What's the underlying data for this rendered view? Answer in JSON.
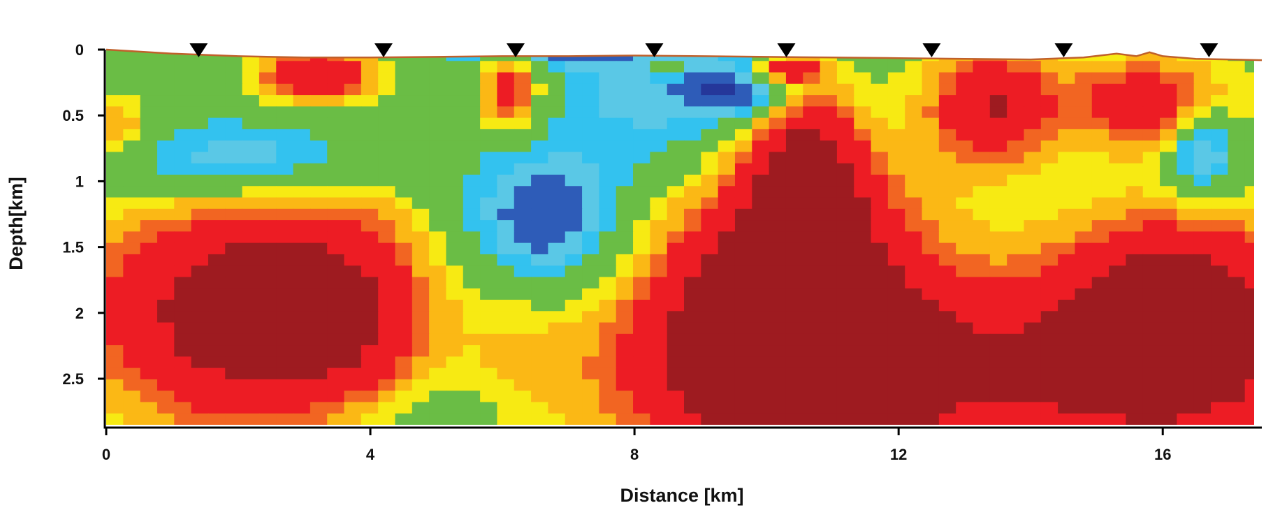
{
  "chart_data": {
    "type": "heatmap",
    "title": "",
    "xlabel": "Distance [km]",
    "ylabel": "Depth[km]",
    "xlim": [
      0,
      17.5
    ],
    "ylim": [
      0,
      2.85
    ],
    "y_inverted": true,
    "x_ticks": [
      0,
      4,
      8,
      12,
      16
    ],
    "x_tick_labels": [
      "0",
      "4",
      "8",
      "12",
      "16"
    ],
    "y_ticks": [
      0,
      0.5,
      1,
      1.5,
      2,
      2.5
    ],
    "y_tick_labels": [
      "0",
      "0.5",
      "1",
      "1.5",
      "2",
      "2.5"
    ],
    "grid": false,
    "legend": "none",
    "stations_km": [
      1.4,
      4.2,
      6.2,
      8.3,
      10.3,
      12.5,
      14.5,
      16.7
    ],
    "topography": {
      "x": [
        0,
        1.0,
        2.0,
        3.0,
        4.0,
        5.0,
        6.0,
        7.0,
        8.0,
        9.0,
        10.0,
        11.0,
        12.0,
        13.0,
        14.0,
        14.8,
        15.3,
        15.6,
        15.8,
        16.0,
        16.5,
        17.0,
        17.5
      ],
      "depth": [
        0.0,
        0.03,
        0.05,
        0.06,
        0.06,
        0.055,
        0.05,
        0.05,
        0.045,
        0.05,
        0.055,
        0.06,
        0.065,
        0.07,
        0.075,
        0.06,
        0.03,
        0.05,
        0.02,
        0.05,
        0.07,
        0.075,
        0.08
      ],
      "color": "#c0602a"
    },
    "color_scale": [
      "#25379a",
      "#2e5cb8",
      "#5ac8e6",
      "#33c2ef",
      "#6abd45",
      "#f7ea13",
      "#fbb815",
      "#f26522",
      "#ed1c24",
      "#9e1b20"
    ],
    "anomalies": [
      {
        "x": 8.5,
        "y": 0.25,
        "s": 1.8,
        "v": -1.0,
        "rx": 2.0,
        "ry": 0.35
      },
      {
        "x": 8.6,
        "y": 0.65,
        "s": 1.0,
        "v": -1.05,
        "rx": 1.4,
        "ry": 0.55
      },
      {
        "x": 6.6,
        "y": 1.32,
        "s": 1.0,
        "v": -2.6,
        "rx": 1.25,
        "ry": 0.55
      },
      {
        "x": 2.1,
        "y": 0.85,
        "s": 1.0,
        "v": -2.1,
        "rx": 1.9,
        "ry": 0.32
      },
      {
        "x": 9.7,
        "y": 0.3,
        "s": 1.0,
        "v": -2.0,
        "rx": 0.75,
        "ry": 0.22
      },
      {
        "x": 16.6,
        "y": 0.75,
        "s": 1.0,
        "v": -2.6,
        "rx": 0.55,
        "ry": 0.38
      },
      {
        "x": 6.7,
        "y": 0.07,
        "s": 1.0,
        "v": -1.7,
        "rx": 1.6,
        "ry": 0.06
      },
      {
        "x": 2.6,
        "y": 2.0,
        "s": 1.0,
        "v": 6.0,
        "rx": 2.7,
        "ry": 0.85
      },
      {
        "x": 10.4,
        "y": 1.95,
        "s": 1.0,
        "v": 6.3,
        "rx": 2.0,
        "ry": 1.05
      },
      {
        "x": 10.6,
        "y": 1.0,
        "s": 1.0,
        "v": 4.2,
        "rx": 0.8,
        "ry": 0.7
      },
      {
        "x": 12.0,
        "y": 2.5,
        "s": 1.0,
        "v": 3.5,
        "rx": 4.5,
        "ry": 0.7
      },
      {
        "x": 16.2,
        "y": 2.1,
        "s": 1.0,
        "v": 6.0,
        "rx": 2.0,
        "ry": 0.8
      },
      {
        "x": 13.4,
        "y": 0.42,
        "s": 1.0,
        "v": 3.9,
        "rx": 0.95,
        "ry": 0.45
      },
      {
        "x": 15.8,
        "y": 0.4,
        "s": 1.0,
        "v": 3.4,
        "rx": 1.3,
        "ry": 0.35
      },
      {
        "x": 3.2,
        "y": 0.18,
        "s": 1.0,
        "v": 3.7,
        "rx": 0.9,
        "ry": 0.22
      },
      {
        "x": 6.1,
        "y": 0.3,
        "s": 1.0,
        "v": 3.2,
        "rx": 0.45,
        "ry": 0.3
      },
      {
        "x": 0.15,
        "y": 0.58,
        "s": 1.0,
        "v": 1.8,
        "rx": 0.45,
        "ry": 0.25
      },
      {
        "x": 10.3,
        "y": 0.15,
        "s": 1.0,
        "v": 3.3,
        "rx": 0.55,
        "ry": 0.1
      },
      {
        "x": 5.0,
        "y": 2.2,
        "s": 1.0,
        "v": -1.3,
        "rx": 0.9,
        "ry": 0.9
      },
      {
        "x": 4.2,
        "y": 2.8,
        "s": 1.0,
        "v": -0.8,
        "rx": 1.5,
        "ry": 0.25
      },
      {
        "x": 8.5,
        "y": 0.15,
        "s": 1.0,
        "v": 1.4,
        "rx": 0.3,
        "ry": 0.08
      }
    ]
  }
}
